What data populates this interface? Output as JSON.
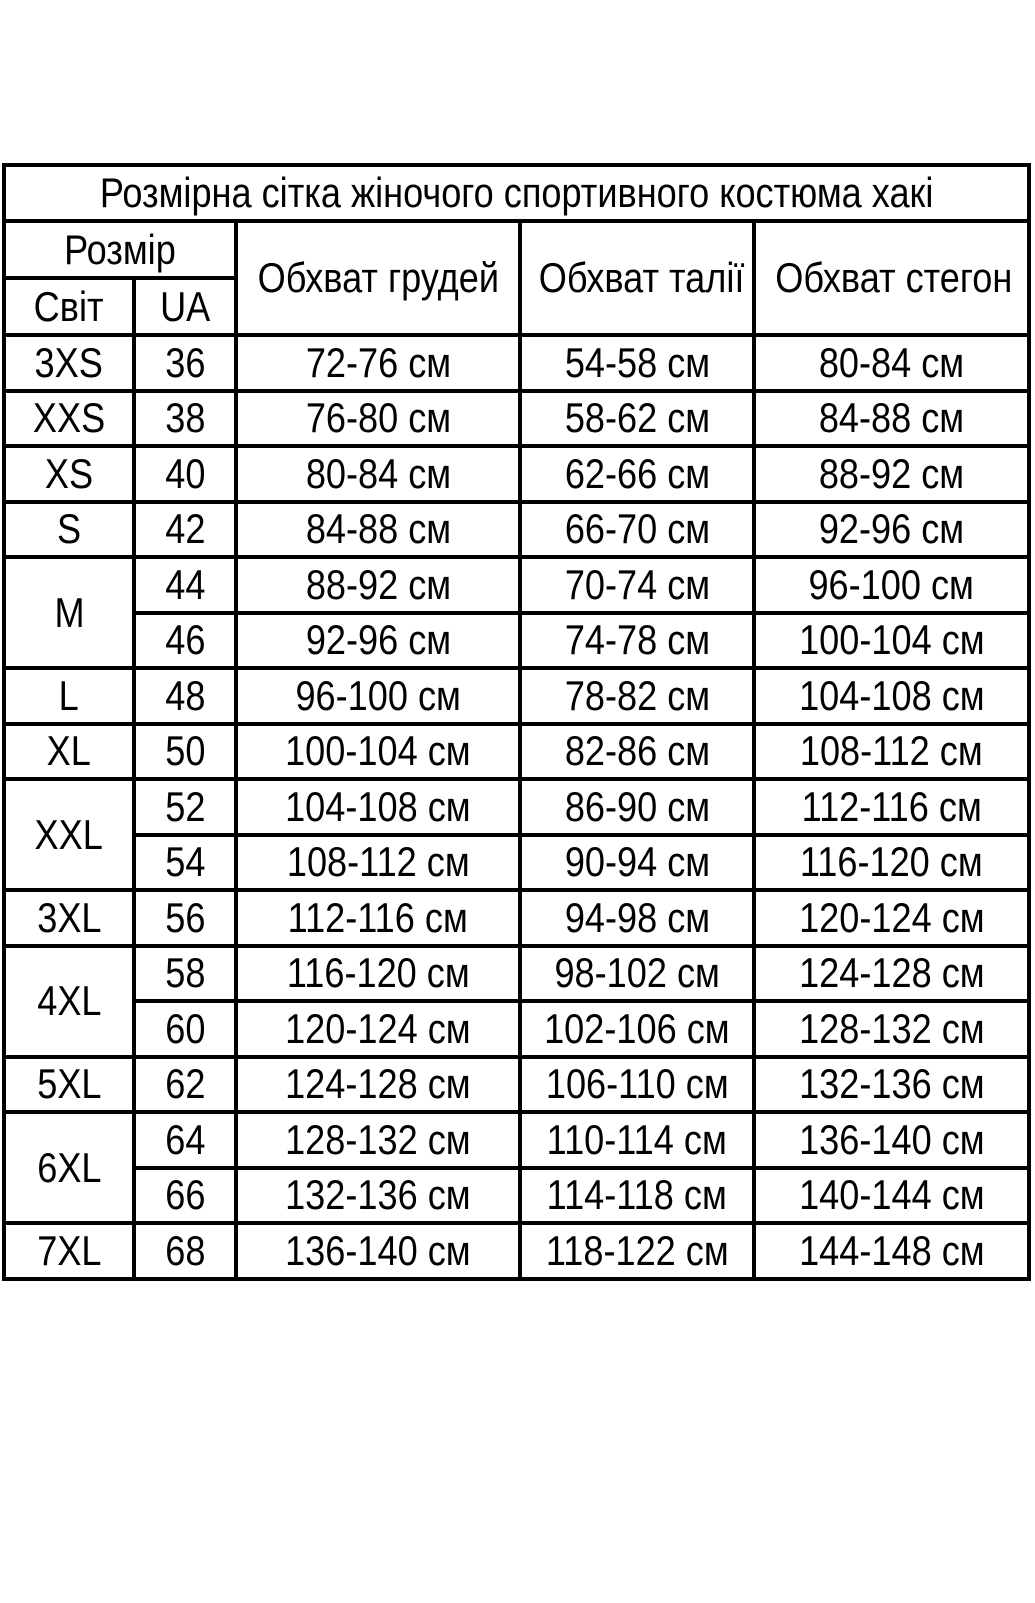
{
  "page": {
    "background_color": "#ffffff",
    "border_color": "#000000",
    "text_color": "#000000"
  },
  "table": {
    "title": "Розмірна сітка жіночого спортивного костюма хакі",
    "header": {
      "size_group": "Розмір",
      "world": "Світ",
      "ua": "UA",
      "chest": "Обхват грудей",
      "waist": "Обхват талії",
      "hips": "Обхват стегон"
    },
    "rows": [
      {
        "world": "3XS",
        "world_rowspan": 1,
        "ua": "36",
        "chest": "72-76 см",
        "waist": "54-58 см",
        "hips": "80-84 см"
      },
      {
        "world": "XXS",
        "world_rowspan": 1,
        "ua": "38",
        "chest": "76-80 см",
        "waist": "58-62 см",
        "hips": "84-88 см"
      },
      {
        "world": "XS",
        "world_rowspan": 1,
        "ua": "40",
        "chest": "80-84 см",
        "waist": "62-66 см",
        "hips": "88-92 см"
      },
      {
        "world": "S",
        "world_rowspan": 1,
        "ua": "42",
        "chest": "84-88 см",
        "waist": "66-70 см",
        "hips": "92-96 см"
      },
      {
        "world": "M",
        "world_rowspan": 2,
        "ua": "44",
        "chest": "88-92 см",
        "waist": "70-74 см",
        "hips": "96-100 см"
      },
      {
        "ua": "46",
        "chest": "92-96 см",
        "waist": "74-78 см",
        "hips": "100-104 см"
      },
      {
        "world": "L",
        "world_rowspan": 1,
        "ua": "48",
        "chest": "96-100 см",
        "waist": "78-82 см",
        "hips": "104-108 см"
      },
      {
        "world": "XL",
        "world_rowspan": 1,
        "ua": "50",
        "chest": "100-104 см",
        "waist": "82-86 см",
        "hips": "108-112 см"
      },
      {
        "world": "XXL",
        "world_rowspan": 2,
        "ua": "52",
        "chest": "104-108 см",
        "waist": "86-90 см",
        "hips": "112-116 см"
      },
      {
        "ua": "54",
        "chest": "108-112 см",
        "waist": "90-94 см",
        "hips": "116-120 см"
      },
      {
        "world": "3XL",
        "world_rowspan": 1,
        "ua": "56",
        "chest": "112-116 см",
        "waist": "94-98 см",
        "hips": "120-124 см"
      },
      {
        "world": "4XL",
        "world_rowspan": 2,
        "ua": "58",
        "chest": "116-120 см",
        "waist": "98-102 см",
        "hips": "124-128 см"
      },
      {
        "ua": "60",
        "chest": "120-124 см",
        "waist": "102-106 см",
        "hips": "128-132 см"
      },
      {
        "world": "5XL",
        "world_rowspan": 1,
        "ua": "62",
        "chest": "124-128 см",
        "waist": "106-110 см",
        "hips": "132-136 см"
      },
      {
        "world": "6XL",
        "world_rowspan": 2,
        "ua": "64",
        "chest": "128-132 см",
        "waist": "110-114 см",
        "hips": "136-140 см"
      },
      {
        "ua": "66",
        "chest": "132-136 см",
        "waist": "114-118 см",
        "hips": "140-144 см"
      },
      {
        "world": "7XL",
        "world_rowspan": 1,
        "ua": "68",
        "chest": "136-140 см",
        "waist": "118-122 см",
        "hips": "144-148 см"
      }
    ]
  }
}
